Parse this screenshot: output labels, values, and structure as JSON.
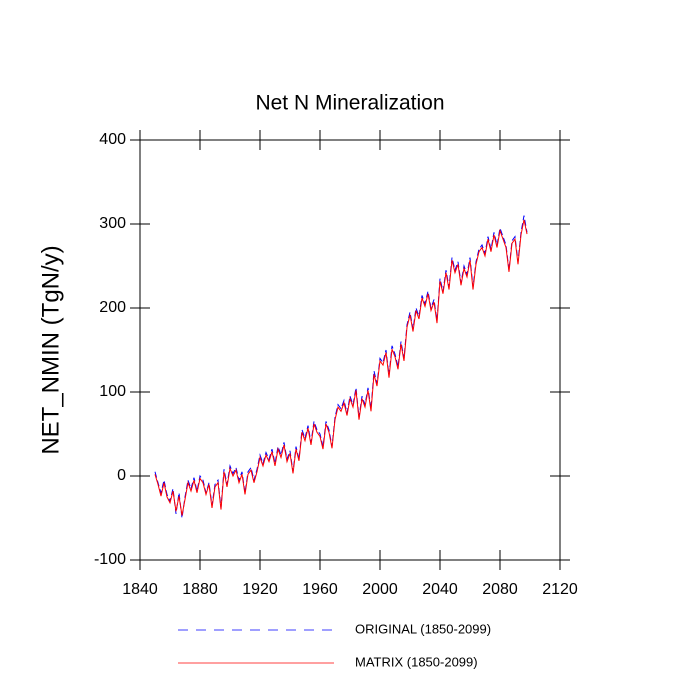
{
  "chart_data": {
    "type": "line",
    "title": "Net N Mineralization",
    "y_label": "NET_NMIN  (TgN/y)",
    "xlim": [
      1840,
      2120
    ],
    "xticks": [
      1840,
      1880,
      1920,
      1960,
      2000,
      2040,
      2080,
      2120
    ],
    "ylim": [
      -100,
      400
    ],
    "yticks": [
      -100,
      0,
      100,
      200,
      300,
      400
    ],
    "x": [
      1850,
      1852,
      1854,
      1856,
      1858,
      1860,
      1862,
      1864,
      1866,
      1868,
      1870,
      1872,
      1874,
      1876,
      1878,
      1880,
      1882,
      1884,
      1886,
      1888,
      1890,
      1892,
      1894,
      1896,
      1898,
      1900,
      1902,
      1904,
      1906,
      1908,
      1910,
      1912,
      1914,
      1916,
      1918,
      1920,
      1922,
      1924,
      1926,
      1928,
      1930,
      1932,
      1934,
      1936,
      1938,
      1940,
      1942,
      1944,
      1946,
      1948,
      1950,
      1952,
      1954,
      1956,
      1958,
      1960,
      1962,
      1964,
      1966,
      1968,
      1970,
      1972,
      1974,
      1976,
      1978,
      1980,
      1982,
      1984,
      1986,
      1988,
      1990,
      1992,
      1994,
      1996,
      1998,
      2000,
      2002,
      2004,
      2006,
      2008,
      2010,
      2012,
      2014,
      2016,
      2018,
      2020,
      2022,
      2024,
      2026,
      2028,
      2030,
      2032,
      2034,
      2036,
      2038,
      2040,
      2042,
      2044,
      2046,
      2048,
      2050,
      2052,
      2054,
      2056,
      2058,
      2060,
      2062,
      2064,
      2066,
      2068,
      2070,
      2072,
      2074,
      2076,
      2078,
      2080,
      2082,
      2084,
      2086,
      2088,
      2090,
      2092,
      2094,
      2096,
      2098
    ],
    "series": [
      {
        "name": "ORIGINAL (1850-2099)",
        "color": "#0000ff",
        "dash": true,
        "values": [
          5,
          -8,
          -20,
          -5,
          -22,
          -30,
          -15,
          -45,
          -20,
          -50,
          -25,
          -5,
          -15,
          -2,
          -18,
          0,
          -5,
          -20,
          -8,
          -35,
          -10,
          -5,
          -38,
          8,
          -10,
          12,
          3,
          10,
          -5,
          5,
          -20,
          5,
          10,
          -5,
          8,
          25,
          15,
          28,
          20,
          32,
          15,
          35,
          25,
          40,
          20,
          30,
          5,
          35,
          20,
          55,
          45,
          60,
          40,
          65,
          55,
          50,
          35,
          65,
          55,
          35,
          70,
          85,
          80,
          90,
          75,
          95,
          85,
          105,
          70,
          95,
          85,
          105,
          80,
          125,
          110,
          140,
          135,
          150,
          120,
          155,
          145,
          130,
          160,
          140,
          180,
          195,
          175,
          200,
          190,
          215,
          205,
          220,
          200,
          210,
          185,
          235,
          220,
          245,
          225,
          260,
          245,
          255,
          230,
          250,
          240,
          260,
          225,
          255,
          270,
          275,
          265,
          285,
          270,
          290,
          275,
          295,
          285,
          275,
          245,
          280,
          285,
          255,
          290,
          310,
          290
        ]
      },
      {
        "name": "MATRIX (1850-2099)",
        "color": "#ff0000",
        "dash": false,
        "values": [
          2,
          -10,
          -24,
          -8,
          -25,
          -32,
          -18,
          -42,
          -24,
          -47,
          -28,
          -8,
          -18,
          -5,
          -20,
          -3,
          -8,
          -22,
          -10,
          -38,
          -13,
          -8,
          -40,
          5,
          -13,
          9,
          0,
          7,
          -8,
          2,
          -22,
          2,
          7,
          -8,
          5,
          22,
          12,
          25,
          17,
          29,
          12,
          32,
          22,
          37,
          17,
          27,
          3,
          32,
          18,
          52,
          42,
          57,
          37,
          62,
          52,
          47,
          32,
          62,
          52,
          33,
          67,
          82,
          77,
          87,
          72,
          92,
          82,
          102,
          67,
          92,
          82,
          102,
          77,
          121,
          107,
          137,
          132,
          147,
          117,
          151,
          142,
          127,
          157,
          137,
          177,
          192,
          172,
          197,
          187,
          212,
          202,
          217,
          197,
          207,
          182,
          232,
          217,
          242,
          222,
          257,
          242,
          252,
          227,
          247,
          237,
          257,
          222,
          252,
          267,
          272,
          262,
          282,
          267,
          287,
          272,
          292,
          282,
          272,
          243,
          277,
          282,
          252,
          287,
          305,
          288
        ]
      }
    ]
  }
}
